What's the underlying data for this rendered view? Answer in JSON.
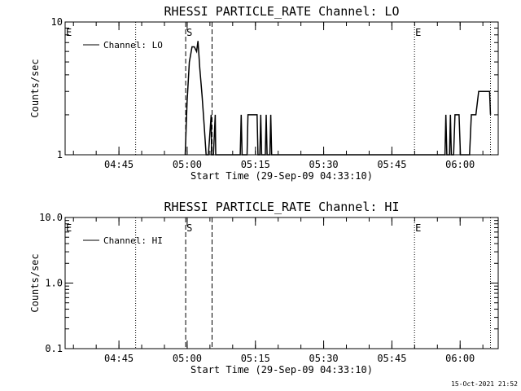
{
  "timestamp": "15-Oct-2021 21:52",
  "chart_data": [
    {
      "type": "line",
      "title": "RHESSI PARTICLE_RATE Channel: LO",
      "xlabel": "Start Time (29-Sep-09 04:33:10)",
      "ylabel": "Counts/sec",
      "y_scale": "log",
      "ylim": [
        1,
        10
      ],
      "y_ticks": [
        {
          "value": 1,
          "label": "1"
        },
        {
          "value": 10,
          "label": "10"
        }
      ],
      "x_unit": "minutes after 04:33:10 (UT)",
      "xlim": [
        0,
        95.2
      ],
      "x_ticks": [
        {
          "value": 11.83,
          "label": "04:45"
        },
        {
          "value": 26.83,
          "label": "05:00"
        },
        {
          "value": 41.83,
          "label": "05:15"
        },
        {
          "value": 56.83,
          "label": "05:30"
        },
        {
          "value": 71.83,
          "label": "05:45"
        },
        {
          "value": 86.83,
          "label": "06:00"
        }
      ],
      "legend": {
        "location": "top-left",
        "entries": [
          "Channel: LO"
        ]
      },
      "vlines": [
        {
          "x": 15.5,
          "style": "dotted"
        },
        {
          "x": 26.5,
          "style": "dashed",
          "label": "S"
        },
        {
          "x": 32.3,
          "style": "dashed"
        },
        {
          "x": 76.8,
          "style": "dotted",
          "label": "E"
        },
        {
          "x": 93.5,
          "style": "dotted"
        }
      ],
      "edge_labels": [
        {
          "label": "E",
          "x": 0
        }
      ],
      "series": [
        {
          "name": "Channel: LO",
          "x": [
            26.4,
            26.8,
            27.3,
            27.9,
            28.4,
            28.9,
            29.2,
            29.6,
            30.1,
            30.6,
            31.0,
            31.5,
            32.1,
            32.2,
            32.6,
            33.0,
            33.1,
            38.5,
            38.7,
            38.9,
            40.0,
            40.2,
            40.4,
            42.2,
            42.4,
            42.8,
            43.0,
            43.2,
            44.0,
            44.2,
            44.4,
            45.0,
            45.2,
            45.4,
            83.5,
            83.7,
            83.9,
            84.5,
            84.7,
            84.9,
            85.4,
            85.7,
            86.1,
            86.6,
            86.9,
            88.9,
            89.3,
            89.6,
            90.0,
            90.3,
            90.9,
            91.2,
            93.3,
            93.5
          ],
          "y": [
            1,
            2.5,
            5,
            6.5,
            6.5,
            6.0,
            7.2,
            4.5,
            2.8,
            1.6,
            1,
            1,
            2.0,
            1,
            1,
            2.0,
            1,
            1,
            2,
            1,
            1,
            2,
            2,
            2,
            1,
            1,
            2,
            1,
            1,
            2,
            1,
            1,
            2,
            1,
            1,
            2,
            1,
            1,
            2,
            1,
            1,
            2,
            2,
            2,
            1,
            1,
            2,
            2,
            2,
            2,
            3,
            3,
            3,
            2
          ]
        }
      ]
    },
    {
      "type": "line",
      "title": "RHESSI PARTICLE_RATE Channel: HI",
      "xlabel": "Start Time (29-Sep-09 04:33:10)",
      "ylabel": "Counts/sec",
      "y_scale": "log",
      "ylim": [
        0.1,
        10
      ],
      "y_ticks": [
        {
          "value": 0.1,
          "label": "0.1"
        },
        {
          "value": 1,
          "label": "1.0"
        },
        {
          "value": 10,
          "label": "10.0"
        }
      ],
      "x_unit": "minutes after 04:33:10 (UT)",
      "xlim": [
        0,
        95.2
      ],
      "x_ticks": [
        {
          "value": 11.83,
          "label": "04:45"
        },
        {
          "value": 26.83,
          "label": "05:00"
        },
        {
          "value": 41.83,
          "label": "05:15"
        },
        {
          "value": 56.83,
          "label": "05:30"
        },
        {
          "value": 71.83,
          "label": "05:45"
        },
        {
          "value": 86.83,
          "label": "06:00"
        }
      ],
      "legend": {
        "location": "top-left",
        "entries": [
          "Channel: HI"
        ]
      },
      "vlines": [
        {
          "x": 15.5,
          "style": "dotted"
        },
        {
          "x": 26.5,
          "style": "dashed",
          "label": "S"
        },
        {
          "x": 32.3,
          "style": "dashed"
        },
        {
          "x": 76.8,
          "style": "dotted",
          "label": "E"
        },
        {
          "x": 93.5,
          "style": "dotted"
        }
      ],
      "edge_labels": [
        {
          "label": "E",
          "x": 0
        }
      ],
      "series": [
        {
          "name": "Channel: HI",
          "x": [],
          "y": []
        }
      ]
    }
  ]
}
